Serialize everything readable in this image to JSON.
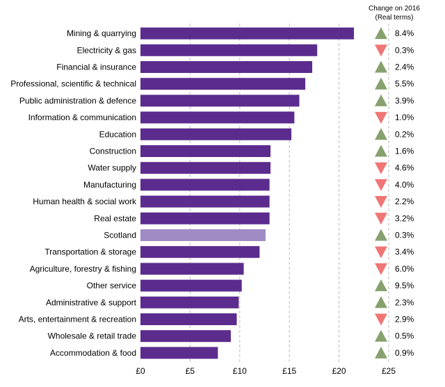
{
  "chart_data": {
    "type": "bar",
    "orientation": "horizontal",
    "categories": [
      "Mining & quarrying",
      "Electricity & gas",
      "Financial & insurance",
      "Professional, scientific & technical",
      "Public administration & defence",
      "Information & communication",
      "Education",
      "Construction",
      "Water supply",
      "Manufacturing",
      "Human health & social work",
      "Real estate",
      "Scotland",
      "Transportation & storage",
      "Agriculture, forestry & fishing",
      "Other service",
      "Administrative & support",
      "Arts, entertainment & recreation",
      "Wholesale & retail trade",
      "Accommodation & food"
    ],
    "values": [
      21.5,
      17.8,
      17.3,
      16.6,
      16.0,
      15.5,
      15.2,
      13.1,
      13.1,
      13.0,
      13.0,
      13.0,
      12.6,
      12.0,
      10.4,
      10.2,
      9.9,
      9.7,
      9.1,
      7.8
    ],
    "highlight_category": "Scotland",
    "xlim": [
      0,
      25
    ],
    "x_tick_labels": [
      "£0",
      "£5",
      "£10",
      "£15",
      "£20",
      "£25"
    ],
    "x_tick_values": [
      0,
      5,
      10,
      15,
      20,
      25
    ],
    "grid": "vertical dashed",
    "colors": {
      "bar": "#5b2c8e",
      "highlight_bar": "#a08bc4",
      "up": "#86a16e",
      "down": "#f07575",
      "grid": "#bbbbbb"
    },
    "change": {
      "header": [
        "Change on 2016",
        "(Real terms)"
      ],
      "direction": [
        "up",
        "down",
        "up",
        "up",
        "up",
        "down",
        "up",
        "up",
        "down",
        "down",
        "down",
        "down",
        "up",
        "down",
        "down",
        "up",
        "up",
        "down",
        "up",
        "up"
      ],
      "labels": [
        "8.4%",
        "0.3%",
        "2.4%",
        "5.5%",
        "3.9%",
        "1.0%",
        "0.2%",
        "1.6%",
        "4.6%",
        "4.0%",
        "2.2%",
        "3.2%",
        "0.3%",
        "3.4%",
        "6.0%",
        "9.5%",
        "2.3%",
        "2.9%",
        "0.5%",
        "0.9%"
      ]
    }
  }
}
